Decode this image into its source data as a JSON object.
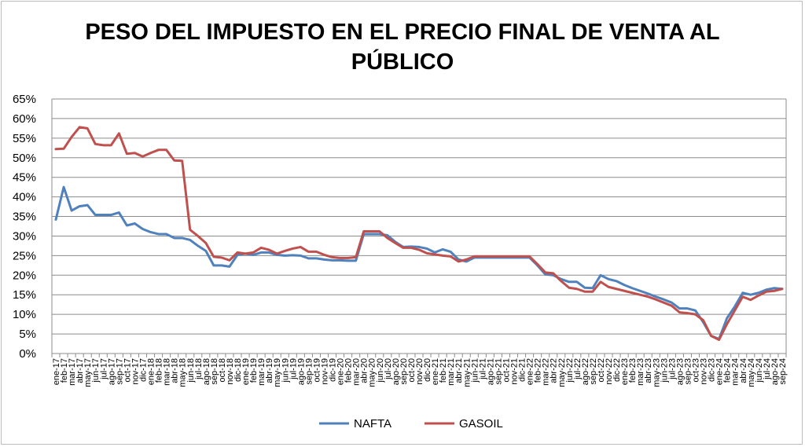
{
  "chart_data": {
    "type": "line",
    "title": "PESO DEL IMPUESTO EN EL PRECIO FINAL DE VENTA AL PÚBLICO",
    "xlabel": "",
    "ylabel": "",
    "ylim": [
      0,
      0.65
    ],
    "y_ticks": [
      "0%",
      "5%",
      "10%",
      "15%",
      "20%",
      "25%",
      "30%",
      "35%",
      "40%",
      "45%",
      "50%",
      "55%",
      "60%",
      "65%"
    ],
    "grid": true,
    "legend_position": "bottom",
    "categories": [
      "ene-17",
      "feb-17",
      "mar-17",
      "abr-17",
      "may-17",
      "jun-17",
      "jul-17",
      "ago-17",
      "sep-17",
      "oct-17",
      "nov-17",
      "dic-17",
      "ene-18",
      "feb-18",
      "mar-18",
      "abr-18",
      "may-18",
      "jun-18",
      "jul-18",
      "ago-18",
      "sep-18",
      "oct-18",
      "nov-18",
      "dic-18",
      "ene-19",
      "feb-19",
      "mar-19",
      "abr-19",
      "may-19",
      "jun-19",
      "jul-19",
      "ago-19",
      "sep-19",
      "oct-19",
      "nov-19",
      "dic-19",
      "ene-20",
      "feb-20",
      "mar-20",
      "abr-20",
      "may-20",
      "jun-20",
      "jul-20",
      "ago-20",
      "sep-20",
      "oct-20",
      "nov-20",
      "dic-20",
      "ene-21",
      "feb-21",
      "mar-21",
      "abr-21",
      "may-21",
      "jun-21",
      "jul-21",
      "ago-21",
      "sep-21",
      "oct-21",
      "nov-21",
      "dic-21",
      "ene-22",
      "feb-22",
      "mar-22",
      "abr-22",
      "may-22",
      "jun-22",
      "jul-22",
      "ago-22",
      "sep-22",
      "oct-22",
      "nov-22",
      "dic-22",
      "ene-23",
      "feb-23",
      "mar-23",
      "abr-23",
      "may-23",
      "jun-23",
      "jul-23",
      "ago-23",
      "sep-23",
      "oct-23",
      "nov-23",
      "dic-23",
      "ene-24",
      "feb-24",
      "mar-24",
      "abr-24",
      "may-24",
      "jun-24",
      "jul-24",
      "ago-24",
      "sep-24"
    ],
    "series": [
      {
        "name": "NAFTA",
        "color": "#4f81bd",
        "values": [
          0.342,
          0.425,
          0.365,
          0.376,
          0.379,
          0.354,
          0.354,
          0.354,
          0.36,
          0.327,
          0.332,
          0.318,
          0.31,
          0.305,
          0.305,
          0.295,
          0.295,
          0.29,
          0.275,
          0.262,
          0.225,
          0.225,
          0.222,
          0.252,
          0.255,
          0.252,
          0.258,
          0.258,
          0.252,
          0.25,
          0.251,
          0.25,
          0.243,
          0.243,
          0.24,
          0.238,
          0.238,
          0.237,
          0.237,
          0.305,
          0.305,
          0.305,
          0.302,
          0.285,
          0.272,
          0.273,
          0.272,
          0.268,
          0.258,
          0.266,
          0.26,
          0.24,
          0.235,
          0.245,
          0.245,
          0.245,
          0.245,
          0.245,
          0.245,
          0.245,
          0.245,
          0.225,
          0.202,
          0.2,
          0.19,
          0.183,
          0.183,
          0.168,
          0.167,
          0.2,
          0.19,
          0.185,
          0.175,
          0.167,
          0.16,
          0.153,
          0.145,
          0.138,
          0.13,
          0.115,
          0.115,
          0.11,
          0.08,
          0.045,
          0.037,
          0.09,
          0.12,
          0.155,
          0.15,
          0.155,
          0.163,
          0.167,
          0.165
        ]
      },
      {
        "name": "GASOIL",
        "color": "#c0504d",
        "values": [
          0.522,
          0.523,
          0.553,
          0.578,
          0.575,
          0.535,
          0.532,
          0.532,
          0.562,
          0.51,
          0.512,
          0.503,
          0.512,
          0.52,
          0.52,
          0.493,
          0.492,
          0.316,
          0.3,
          0.282,
          0.247,
          0.245,
          0.238,
          0.258,
          0.255,
          0.258,
          0.27,
          0.265,
          0.255,
          0.262,
          0.268,
          0.272,
          0.26,
          0.26,
          0.252,
          0.246,
          0.244,
          0.244,
          0.246,
          0.312,
          0.312,
          0.312,
          0.295,
          0.282,
          0.27,
          0.27,
          0.265,
          0.256,
          0.253,
          0.25,
          0.248,
          0.235,
          0.24,
          0.248,
          0.248,
          0.248,
          0.248,
          0.248,
          0.248,
          0.248,
          0.248,
          0.228,
          0.207,
          0.205,
          0.185,
          0.168,
          0.165,
          0.158,
          0.158,
          0.183,
          0.17,
          0.165,
          0.16,
          0.155,
          0.15,
          0.145,
          0.138,
          0.13,
          0.122,
          0.105,
          0.103,
          0.1,
          0.085,
          0.045,
          0.035,
          0.075,
          0.11,
          0.145,
          0.137,
          0.148,
          0.158,
          0.16,
          0.165
        ]
      }
    ]
  }
}
